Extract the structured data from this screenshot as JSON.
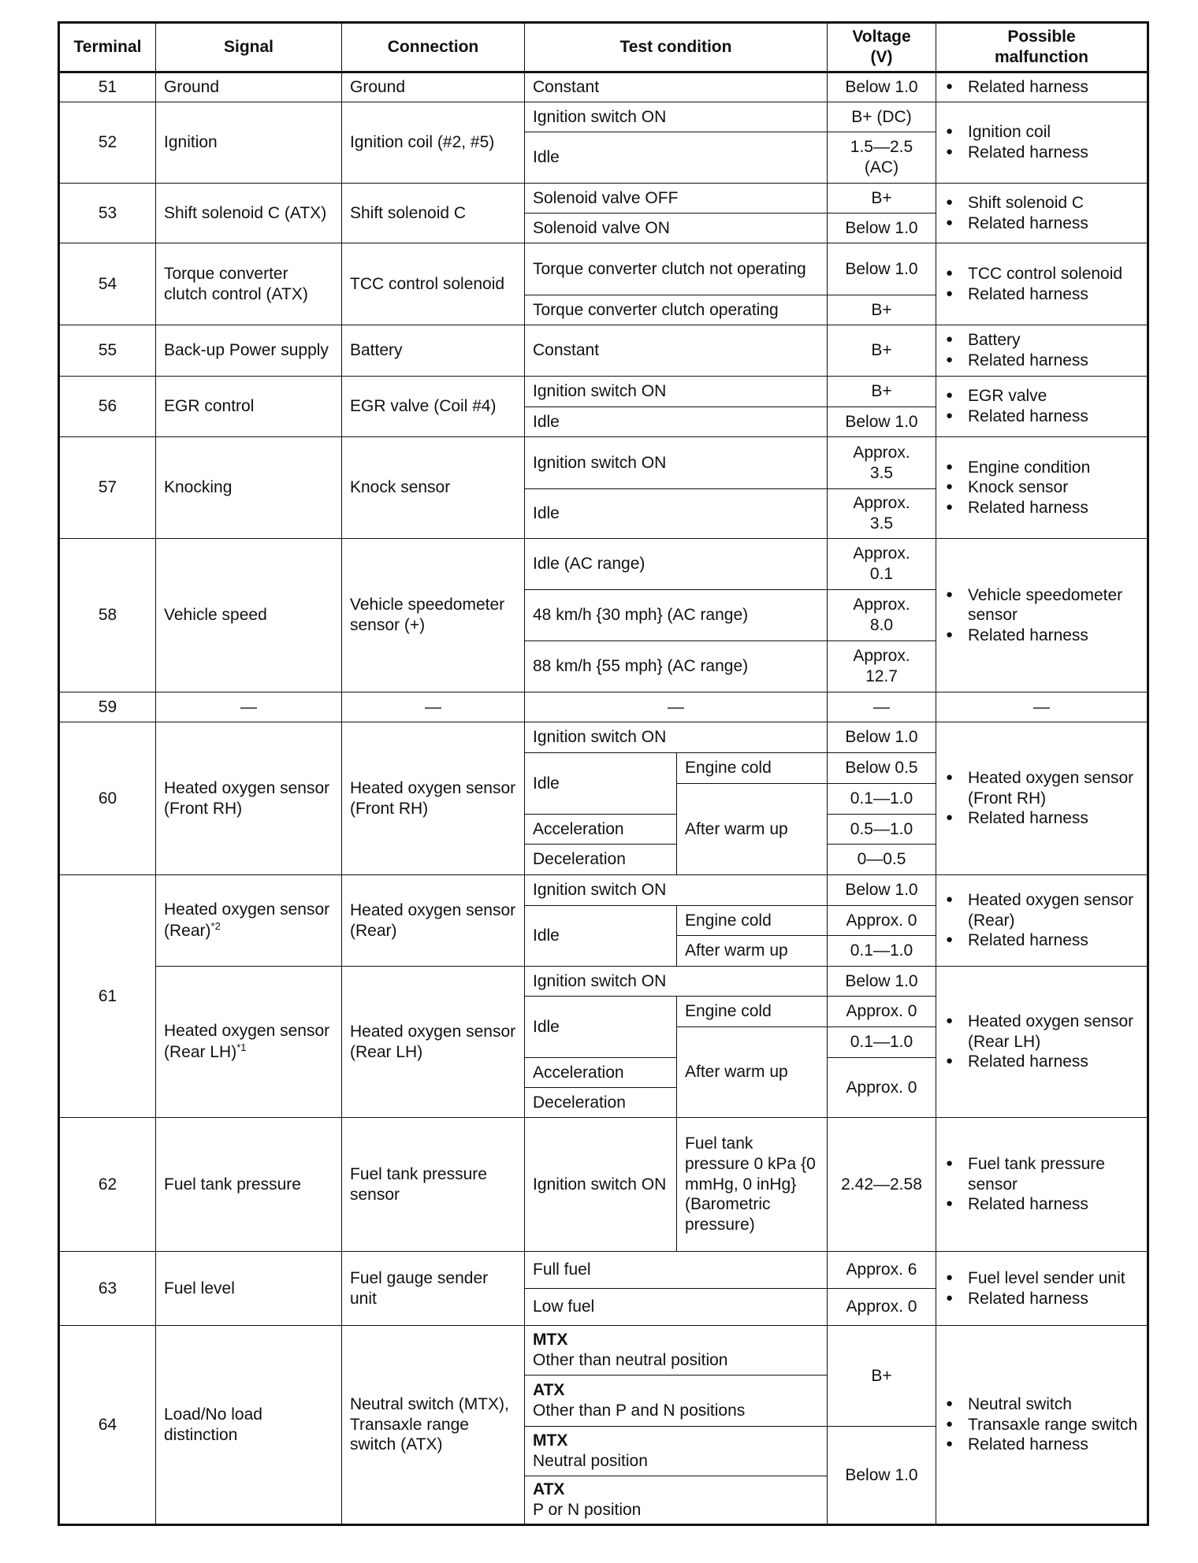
{
  "header": [
    "Terminal",
    "Signal",
    "Connection",
    "Test condition",
    "Voltage (V)",
    "Possible malfunction"
  ],
  "rows": [
    {
      "terminal": "51",
      "signal": "Ground",
      "connection": "Ground",
      "conditions": [
        {
          "test": "Constant",
          "voltage": "Below 1.0"
        }
      ],
      "malfunction": [
        "Related harness"
      ]
    },
    {
      "terminal": "52",
      "signal": "Ignition",
      "connection": "Ignition coil (#2, #5)",
      "conditions": [
        {
          "test": "Ignition switch ON",
          "voltage": "B+ (DC)"
        },
        {
          "test": "Idle",
          "voltage": "1.5—2.5 (AC)"
        }
      ],
      "malfunction": [
        "Ignition coil",
        "Related harness"
      ]
    },
    {
      "terminal": "53",
      "signal": "Shift solenoid C (ATX)",
      "connection": "Shift solenoid C",
      "conditions": [
        {
          "test": "Solenoid valve OFF",
          "voltage": "B+"
        },
        {
          "test": "Solenoid valve ON",
          "voltage": "Below 1.0"
        }
      ],
      "malfunction": [
        "Shift solenoid C",
        "Related harness"
      ]
    },
    {
      "terminal": "54",
      "signal": "Torque converter clutch control (ATX)",
      "connection": "TCC control solenoid",
      "conditions": [
        {
          "test": "Torque converter clutch not operating",
          "voltage": "Below 1.0"
        },
        {
          "test": "Torque converter clutch operating",
          "voltage": "B+"
        }
      ],
      "malfunction": [
        "TCC control solenoid",
        "Related harness"
      ]
    },
    {
      "terminal": "55",
      "signal": "Back-up Power supply",
      "connection": "Battery",
      "conditions": [
        {
          "test": "Constant",
          "voltage": "B+"
        }
      ],
      "malfunction": [
        "Battery",
        "Related harness"
      ]
    },
    {
      "terminal": "56",
      "signal": "EGR control",
      "connection": "EGR valve (Coil #4)",
      "conditions": [
        {
          "test": "Ignition switch ON",
          "voltage": "B+"
        },
        {
          "test": "Idle",
          "voltage": "Below 1.0"
        }
      ],
      "malfunction": [
        "EGR valve",
        "Related harness"
      ]
    },
    {
      "terminal": "57",
      "signal": "Knocking",
      "connection": "Knock sensor",
      "conditions": [
        {
          "test": "Ignition switch ON",
          "voltage": "Approx. 3.5"
        },
        {
          "test": "Idle",
          "voltage": "Approx. 3.5"
        }
      ],
      "malfunction": [
        "Engine condition",
        "Knock sensor",
        "Related harness"
      ]
    },
    {
      "terminal": "58",
      "signal": "Vehicle speed",
      "connection": "Vehicle speedometer sensor (+)",
      "conditions": [
        {
          "test": "Idle (AC range)",
          "voltage": "Approx. 0.1"
        },
        {
          "test": "48 km/h {30 mph} (AC range)",
          "voltage": "Approx. 8.0"
        },
        {
          "test": "88 km/h {55 mph} (AC range)",
          "voltage": "Approx. 12.7"
        }
      ],
      "malfunction": [
        "Vehicle speedometer sensor",
        "Related harness"
      ]
    },
    {
      "terminal": "59",
      "signal": "—",
      "connection": "—",
      "conditions": [
        {
          "test": "—",
          "voltage": "—"
        }
      ],
      "malfunction": [
        "—"
      ]
    },
    {
      "terminal": "60",
      "signal": "Heated oxygen sensor (Front RH)",
      "connection": "Heated oxygen sensor (Front RH)",
      "conditions": {
        "ign": "Ignition switch ON",
        "ign_v": "Below 1.0",
        "idle": "Idle",
        "cold": "Engine cold",
        "cold_v": "Below 0.5",
        "warm": "After warm up",
        "warm_v": "0.1—1.0",
        "accel": "Acceleration",
        "accel_v": "0.5—1.0",
        "decel": "Deceleration",
        "decel_v": "0—0.5"
      },
      "malfunction": [
        "Heated oxygen sensor (Front RH)",
        "Related harness"
      ]
    },
    {
      "terminal": "61",
      "variants": [
        {
          "signal": "Heated oxygen sensor (Rear)",
          "note": "*2",
          "connection": "Heated oxygen sensor (Rear)",
          "conditions": {
            "ign": "Ignition switch ON",
            "ign_v": "Below 1.0",
            "idle": "Idle",
            "cold": "Engine cold",
            "cold_v": "Approx. 0",
            "warm": "After warm up",
            "warm_v": "0.1—1.0"
          },
          "malfunction": [
            "Heated oxygen sensor (Rear)",
            "Related harness"
          ]
        },
        {
          "signal": "Heated oxygen sensor (Rear LH)",
          "note": "*1",
          "connection": "Heated oxygen sensor (Rear LH)",
          "conditions": {
            "ign": "Ignition switch ON",
            "ign_v": "Below 1.0",
            "idle": "Idle",
            "cold": "Engine cold",
            "cold_v": "Approx. 0",
            "warm": "After warm up",
            "warm_v": "0.1—1.0",
            "accel": "Acceleration",
            "decel": "Deceleration",
            "accdec_v": "Approx. 0"
          },
          "malfunction": [
            "Heated oxygen sensor (Rear LH)",
            "Related harness"
          ]
        }
      ]
    },
    {
      "terminal": "62",
      "signal": "Fuel tank pressure",
      "connection": "Fuel tank pressure sensor",
      "conditions": {
        "test": "Ignition switch ON",
        "detail": "Fuel tank pressure 0 kPa {0 mmHg, 0 inHg} (Barometric pressure)",
        "voltage": "2.42—2.58"
      },
      "malfunction": [
        "Fuel tank pressure sensor",
        "Related harness"
      ]
    },
    {
      "terminal": "63",
      "signal": "Fuel level",
      "connection": "Fuel gauge sender unit",
      "conditions": [
        {
          "test": "Full fuel",
          "voltage": "Approx. 6"
        },
        {
          "test": "Low fuel",
          "voltage": "Approx. 0"
        }
      ],
      "malfunction": [
        "Fuel level sender unit",
        "Related harness"
      ]
    },
    {
      "terminal": "64",
      "signal": "Load/No load distinction",
      "connection": "Neutral switch (MTX), Transaxle range switch (ATX)",
      "conditions": [
        {
          "type": "MTX",
          "test": "Other than neutral position"
        },
        {
          "type": "ATX",
          "test": "Other than P and N positions"
        },
        {
          "type": "MTX",
          "test": "Neutral position"
        },
        {
          "type": "ATX",
          "test": "P or N position"
        }
      ],
      "voltages": [
        "B+",
        "Below 1.0"
      ],
      "malfunction": [
        "Neutral switch",
        "Transaxle range switch",
        "Related harness"
      ]
    }
  ]
}
